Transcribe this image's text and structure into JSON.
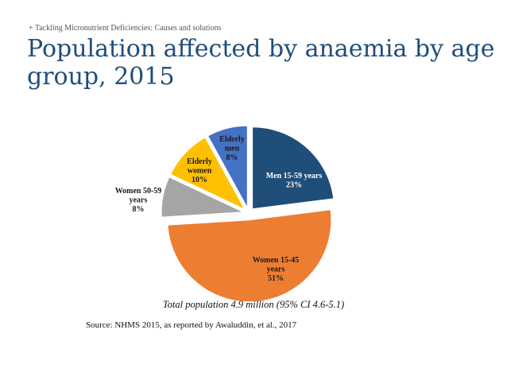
{
  "header": {
    "kicker": "+ Tackling Micronutrient Deficiencies: Causes and solutions",
    "title": "Population affected by anaemia by age group, 2015"
  },
  "chart_data": {
    "type": "pie",
    "title": "Population affected by anaemia by age group, 2015",
    "slices": [
      {
        "name": "Men 15-59 years",
        "pct": "23%",
        "value": 23,
        "color": "#1f4e79",
        "text_color": "#ffffff",
        "label_lines": [
          "Men 15-59 years",
          "23%"
        ]
      },
      {
        "name": "Women 15-45 years",
        "pct": "51%",
        "value": 51,
        "color": "#ed7d31",
        "text_color": "#1a1a1a",
        "label_lines": [
          "Women 15-45",
          "years",
          "51%"
        ]
      },
      {
        "name": "Women 50-59 years",
        "pct": "8%",
        "value": 8,
        "color": "#a5a5a5",
        "text_color": "#1a1a1a",
        "label_lines": [
          "Women 50-59",
          "years",
          "8%"
        ]
      },
      {
        "name": "Elderly women",
        "pct": "10%",
        "value": 10,
        "color": "#ffc000",
        "text_color": "#1a1a1a",
        "label_lines": [
          "Elderly",
          "women",
          "10%"
        ]
      },
      {
        "name": "Elderly men",
        "pct": "8%",
        "value": 8,
        "color": "#4472c4",
        "text_color": "#1a1a1a",
        "label_lines": [
          "Elderly",
          "men",
          "8%"
        ]
      }
    ],
    "annotation": "Total population 4.9 million (95% CI 4.6-5.1)"
  },
  "footer": {
    "source": "Source: NHMS 2015, as reported by Awaluddin, et al., 2017"
  }
}
